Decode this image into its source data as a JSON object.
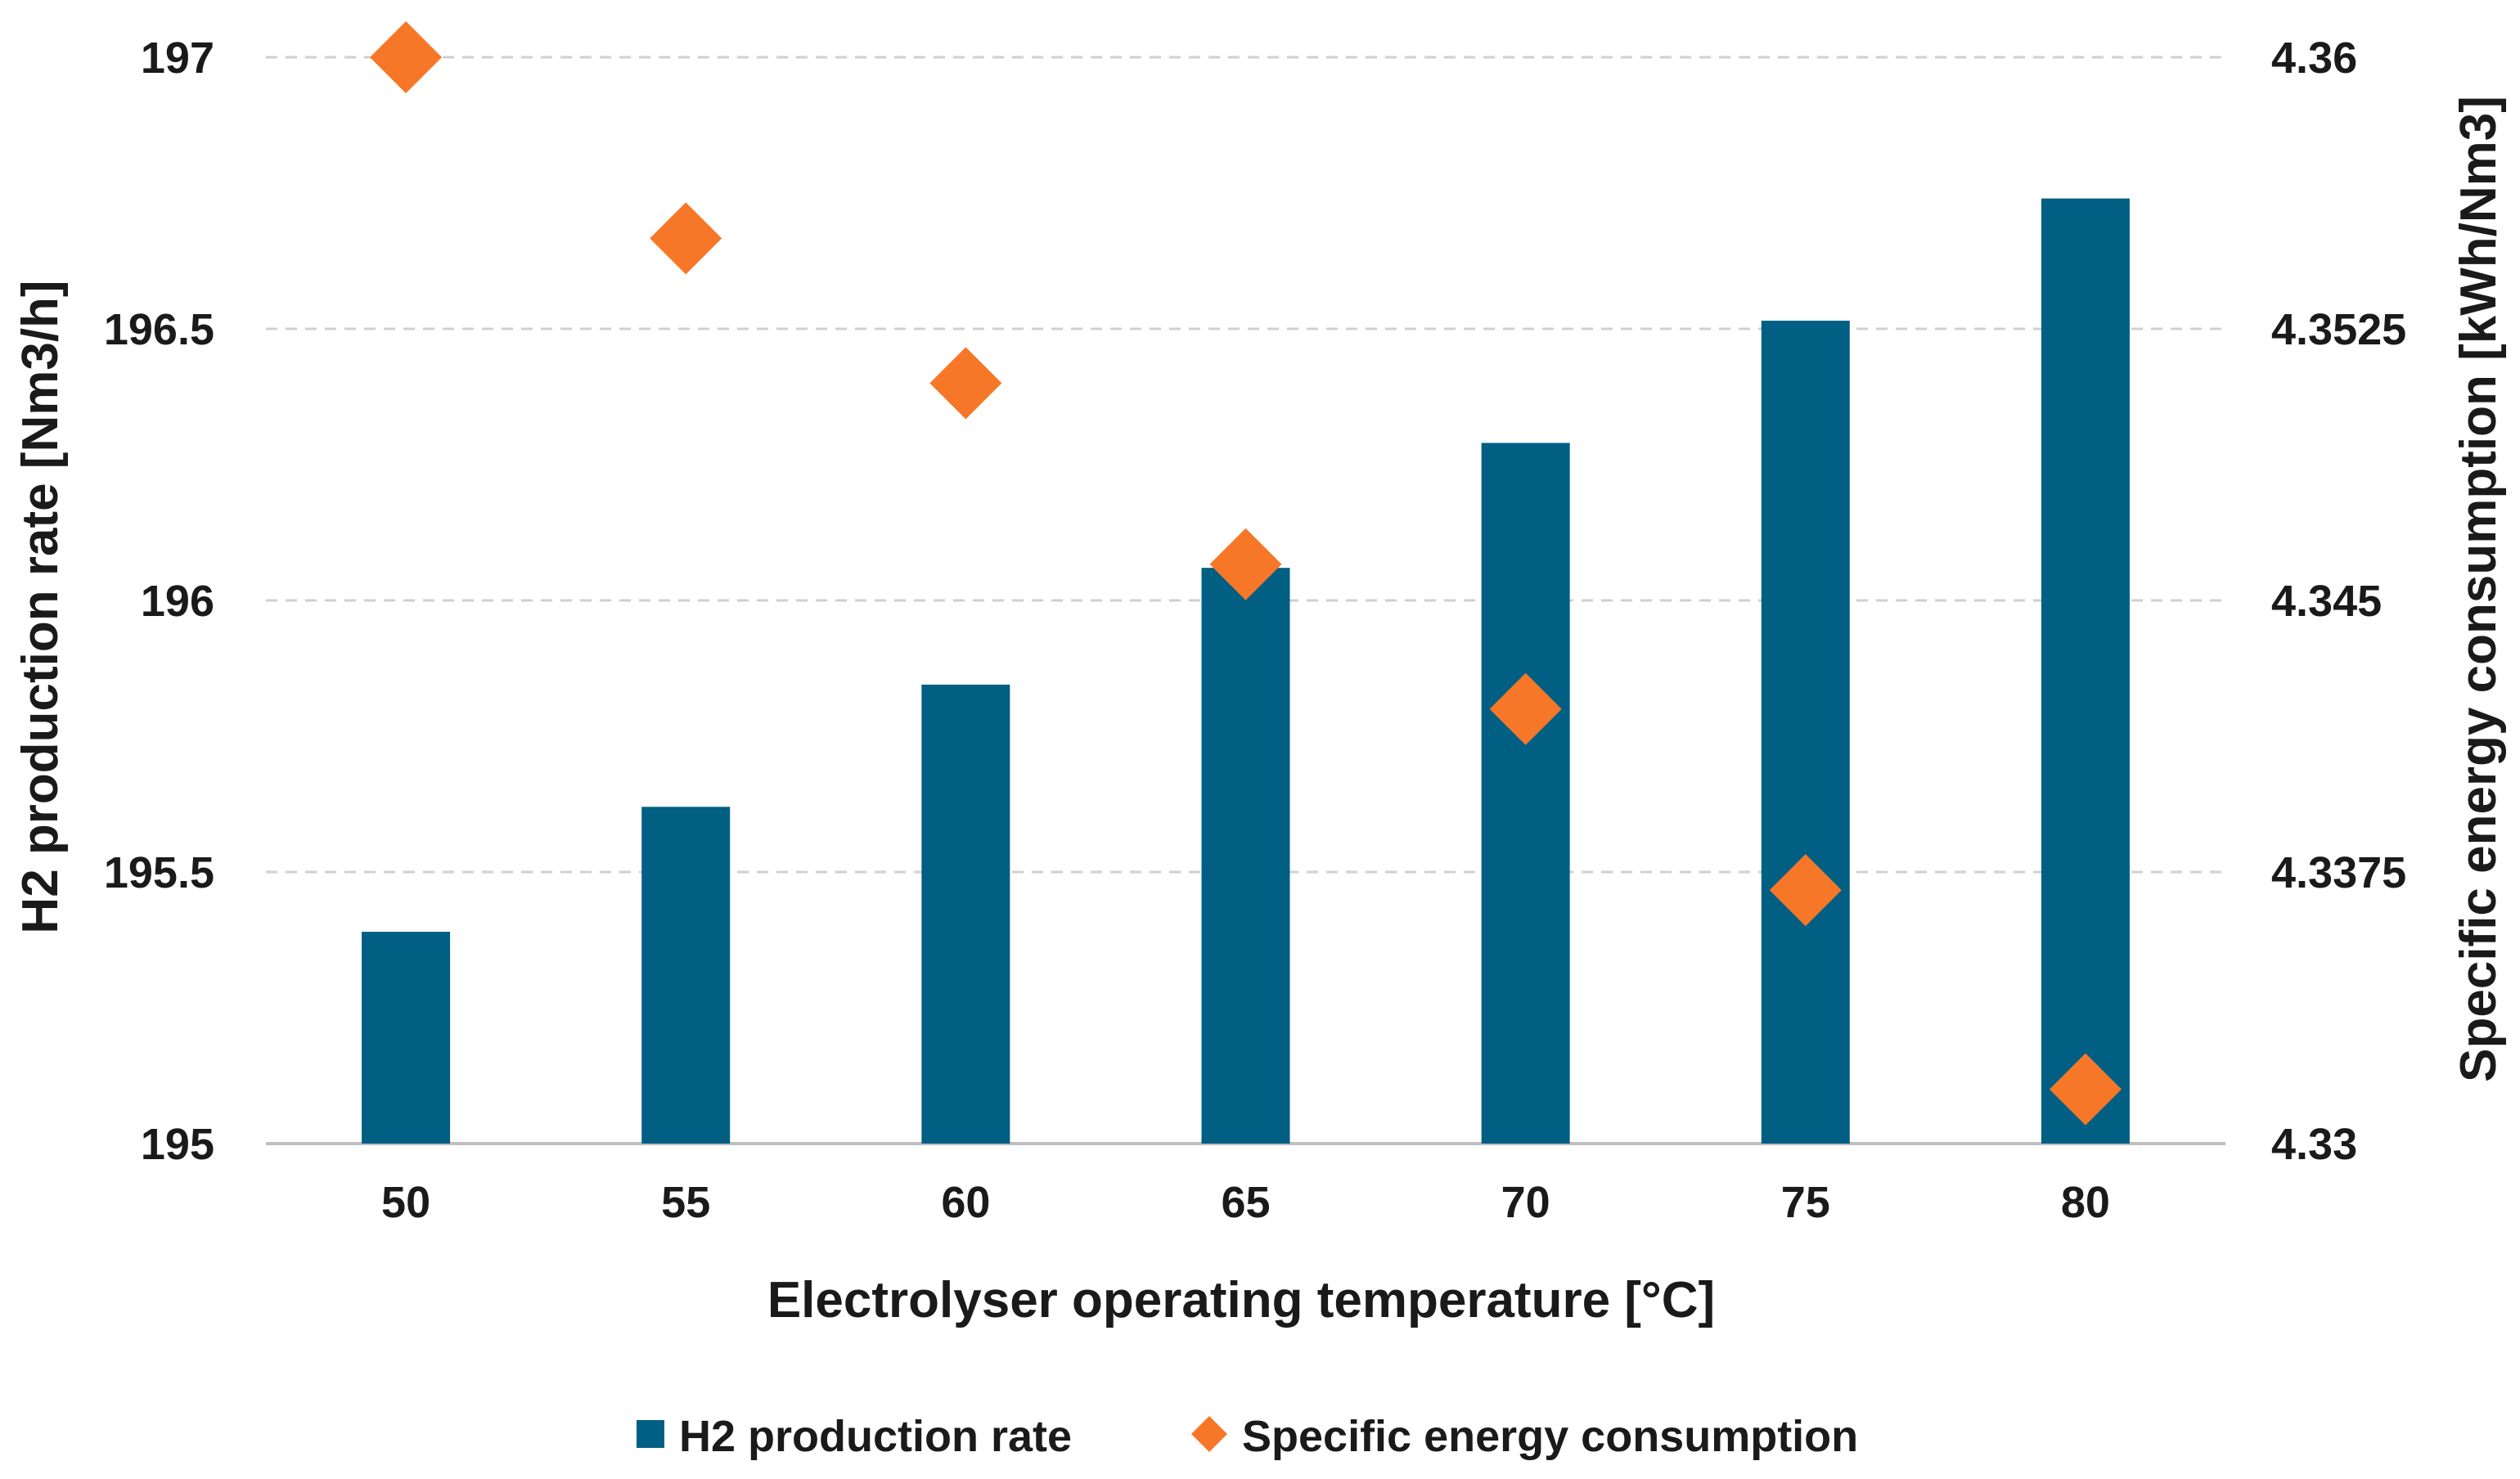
{
  "chart_data": {
    "type": "bar",
    "categories": [
      "50",
      "55",
      "60",
      "65",
      "70",
      "75",
      "80"
    ],
    "series": [
      {
        "name": "H2 production rate",
        "type": "bar",
        "axis": "left",
        "values": [
          195.39,
          195.62,
          195.845,
          196.06,
          196.29,
          196.515,
          196.74
        ]
      },
      {
        "name": "Specific energy consumption",
        "type": "scatter",
        "axis": "right",
        "values": [
          4.36,
          4.355,
          4.351,
          4.346,
          4.342,
          4.337,
          4.3315
        ]
      }
    ],
    "xlabel": "Electrolyser operating temperature [°C]",
    "ylabel": "H2 production rate [Nm3/h]",
    "y2label": "Specific energy consumption [kWh/Nm3]",
    "ylim": [
      195,
      197
    ],
    "y2lim": [
      4.33,
      4.36
    ],
    "yticks": [
      "195",
      "195.5",
      "196",
      "196.5",
      "197"
    ],
    "y2ticks": [
      "4.33",
      "4.3375",
      "4.345",
      "4.3525",
      "4.36"
    ],
    "grid": true,
    "legend": "bottom",
    "colors": {
      "bar": "#005f83",
      "marker": "#f77729",
      "grid": "#d0d0d0",
      "axis": "#bfbfbf"
    }
  }
}
